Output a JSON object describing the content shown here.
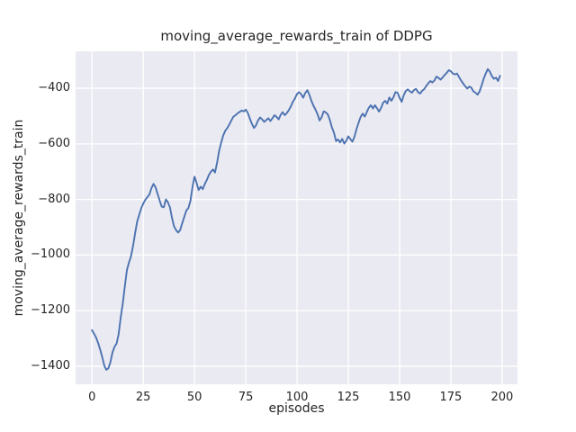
{
  "chart_data": {
    "type": "line",
    "title": "moving_average_rewards_train of DDPG",
    "xlabel": "episodes",
    "ylabel": "moving_average_rewards_train",
    "x_ticks": [
      0,
      25,
      50,
      75,
      100,
      125,
      150,
      175,
      200
    ],
    "y_ticks": [
      -400,
      -600,
      -800,
      -1000,
      -1200,
      -1400
    ],
    "xlim": [
      -8,
      207.5
    ],
    "ylim": [
      -1465,
      -267
    ],
    "grid": true,
    "legend": "none",
    "axes_bg_color": "#eaeaf2",
    "grid_color": "#ffffff",
    "line_color": "#4c72b0",
    "text_color": "#262626",
    "series": [
      {
        "name": "moving_average_rewards_train",
        "x_start": 0,
        "x_step": 1,
        "values": [
          -1270,
          -1283,
          -1297,
          -1317,
          -1340,
          -1367,
          -1398,
          -1413,
          -1407,
          -1385,
          -1350,
          -1330,
          -1318,
          -1285,
          -1225,
          -1175,
          -1113,
          -1054,
          -1028,
          -1005,
          -968,
          -922,
          -880,
          -856,
          -832,
          -815,
          -801,
          -792,
          -782,
          -759,
          -744,
          -757,
          -780,
          -804,
          -826,
          -828,
          -800,
          -810,
          -828,
          -866,
          -897,
          -910,
          -919,
          -910,
          -885,
          -862,
          -840,
          -831,
          -805,
          -755,
          -718,
          -740,
          -766,
          -754,
          -763,
          -745,
          -730,
          -712,
          -700,
          -692,
          -703,
          -668,
          -625,
          -595,
          -570,
          -553,
          -543,
          -530,
          -515,
          -502,
          -497,
          -490,
          -485,
          -480,
          -483,
          -477,
          -489,
          -510,
          -528,
          -543,
          -533,
          -515,
          -505,
          -512,
          -521,
          -514,
          -508,
          -518,
          -508,
          -497,
          -503,
          -512,
          -496,
          -486,
          -497,
          -489,
          -478,
          -465,
          -448,
          -436,
          -420,
          -414,
          -421,
          -434,
          -417,
          -407,
          -423,
          -445,
          -463,
          -477,
          -494,
          -516,
          -504,
          -483,
          -487,
          -494,
          -514,
          -541,
          -560,
          -590,
          -584,
          -595,
          -582,
          -599,
          -589,
          -573,
          -583,
          -592,
          -574,
          -547,
          -524,
          -503,
          -491,
          -502,
          -486,
          -470,
          -461,
          -473,
          -461,
          -472,
          -484,
          -470,
          -452,
          -445,
          -455,
          -433,
          -445,
          -432,
          -414,
          -416,
          -434,
          -449,
          -426,
          -410,
          -404,
          -411,
          -416,
          -407,
          -402,
          -414,
          -419,
          -409,
          -403,
          -392,
          -382,
          -374,
          -379,
          -372,
          -358,
          -363,
          -369,
          -361,
          -352,
          -344,
          -335,
          -339,
          -347,
          -350,
          -347,
          -360,
          -372,
          -383,
          -393,
          -401,
          -394,
          -398,
          -411,
          -416,
          -423,
          -412,
          -390,
          -366,
          -347,
          -331,
          -340,
          -356,
          -366,
          -362,
          -374,
          -355
        ]
      }
    ]
  }
}
